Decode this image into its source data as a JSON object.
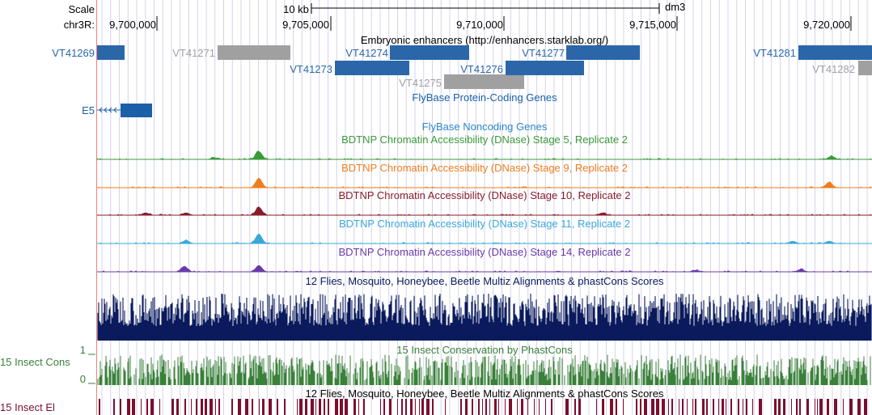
{
  "ruler": {
    "scale_label": "Scale",
    "scale_value": "10 kb",
    "assembly": "dm3",
    "chrom_label": "chr3R:",
    "positions": [
      "9,700,000",
      "9,705,000",
      "9,710,000",
      "9,715,000",
      "9,720,000"
    ]
  },
  "tracks": {
    "enhancers": {
      "title": "Embryonic enhancers (http://enhancers.starklab.org/)",
      "active_color": "#2b67a8",
      "inactive_color": "#a0a0a0",
      "features": [
        {
          "name": "VT41269",
          "active": true
        },
        {
          "name": "VT41271",
          "active": false
        },
        {
          "name": "VT41273",
          "active": true
        },
        {
          "name": "VT41274",
          "active": true
        },
        {
          "name": "VT41275",
          "active": false
        },
        {
          "name": "VT41276",
          "active": true
        },
        {
          "name": "VT41277",
          "active": true
        },
        {
          "name": "VT41281",
          "active": true
        },
        {
          "name": "VT41282",
          "active": false
        }
      ]
    },
    "flybase_coding": {
      "title": "FlyBase Protein-Coding Genes",
      "color": "#1a5fa8",
      "gene": "E5"
    },
    "flybase_noncoding": {
      "title": "FlyBase Noncoding Genes",
      "color": "#2e86c8"
    },
    "dnase": [
      {
        "title": "BDTNP Chromatin Accessibility (DNase) Stage 5, Replicate 2",
        "color": "#3a9a3a"
      },
      {
        "title": "BDTNP Chromatin Accessibility (DNase) Stage 9, Replicate 2",
        "color": "#f07d1e"
      },
      {
        "title": "BDTNP Chromatin Accessibility (DNase) Stage 10, Replicate 2",
        "color": "#8a1c2a"
      },
      {
        "title": "BDTNP Chromatin Accessibility (DNase) Stage 11, Replicate 2",
        "color": "#3ba8d8"
      },
      {
        "title": "BDTNP Chromatin Accessibility (DNase) Stage 14, Replicate 2",
        "color": "#6a3aa8"
      }
    ],
    "multiz": {
      "title": "12 Flies, Mosquito, Honeybee, Beetle Multiz Alignments & phastCons Scores",
      "color": "#0a1a5c"
    },
    "phastcons": {
      "title": "15 Insect Conservation by PhastCons",
      "side_label": "15 Insect Cons",
      "y_max": "1",
      "y_min": "0",
      "color": "#3a803a"
    },
    "elements": {
      "title": "12 Flies, Mosquito, Honeybee, Beetle Multiz Alignments & phastCons Scores",
      "side_label": "15 Insect El",
      "color": "#7a0f2e"
    }
  }
}
